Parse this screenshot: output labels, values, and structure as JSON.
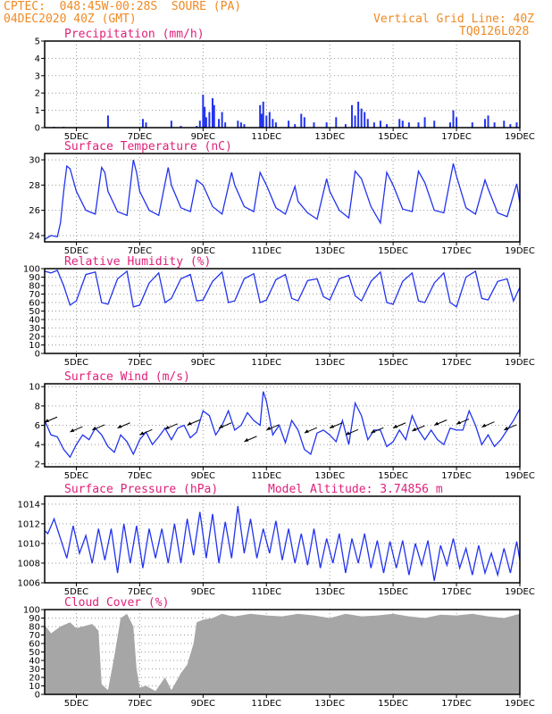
{
  "header": {
    "line1": "CPTEC:  048:45W-00:28S  SOURE (PA)",
    "line2": "04DEC2020 40Z (GMT)",
    "right1": "Vertical Grid Line: 40Z",
    "right2": "TQ0126L028"
  },
  "colors": {
    "line": "#2233ee",
    "bar": "#2233ee",
    "cloud": "#a6a6a6",
    "title": "#e0207a",
    "header": "#f08a24",
    "grid": "#999999"
  },
  "chart_data": [
    {
      "type": "bar",
      "title": "Precipitation (mm/h)",
      "ylim": [
        0,
        5
      ],
      "yticks": [
        0,
        1,
        2,
        3,
        4,
        5
      ],
      "xticks": [
        "5DEC",
        "7DEC",
        "9DEC",
        "11DEC",
        "13DEC",
        "15DEC",
        "17DEC",
        "19DEC"
      ],
      "x_range_days": [
        4.0,
        19.0
      ],
      "bars": [
        [
          4.3,
          0.05
        ],
        [
          4.6,
          0.05
        ],
        [
          6.0,
          0.7
        ],
        [
          7.1,
          0.5
        ],
        [
          7.2,
          0.3
        ],
        [
          8.0,
          0.4
        ],
        [
          8.3,
          0.1
        ],
        [
          8.8,
          0.1
        ],
        [
          8.9,
          0.4
        ],
        [
          9.0,
          1.9
        ],
        [
          9.05,
          1.2
        ],
        [
          9.1,
          0.6
        ],
        [
          9.2,
          0.9
        ],
        [
          9.3,
          1.7
        ],
        [
          9.35,
          1.3
        ],
        [
          9.5,
          0.5
        ],
        [
          9.6,
          0.9
        ],
        [
          9.7,
          0.3
        ],
        [
          10.1,
          0.4
        ],
        [
          10.2,
          0.3
        ],
        [
          10.3,
          0.2
        ],
        [
          10.8,
          1.3
        ],
        [
          10.85,
          0.8
        ],
        [
          10.9,
          1.5
        ],
        [
          11.0,
          0.7
        ],
        [
          11.1,
          0.9
        ],
        [
          11.2,
          0.5
        ],
        [
          11.3,
          0.3
        ],
        [
          11.7,
          0.4
        ],
        [
          11.9,
          0.2
        ],
        [
          12.1,
          0.8
        ],
        [
          12.2,
          0.6
        ],
        [
          12.5,
          0.3
        ],
        [
          12.9,
          0.3
        ],
        [
          13.2,
          0.6
        ],
        [
          13.5,
          0.2
        ],
        [
          13.7,
          1.3
        ],
        [
          13.8,
          0.7
        ],
        [
          13.9,
          1.5
        ],
        [
          14.0,
          1.1
        ],
        [
          14.1,
          0.9
        ],
        [
          14.2,
          0.5
        ],
        [
          14.4,
          0.3
        ],
        [
          14.6,
          0.4
        ],
        [
          14.8,
          0.2
        ],
        [
          15.2,
          0.5
        ],
        [
          15.3,
          0.4
        ],
        [
          15.5,
          0.3
        ],
        [
          15.8,
          0.3
        ],
        [
          16.0,
          0.6
        ],
        [
          16.3,
          0.4
        ],
        [
          16.8,
          0.3
        ],
        [
          16.9,
          1.0
        ],
        [
          17.0,
          0.6
        ],
        [
          17.5,
          0.3
        ],
        [
          17.9,
          0.5
        ],
        [
          18.0,
          0.7
        ],
        [
          18.2,
          0.3
        ],
        [
          18.5,
          0.4
        ],
        [
          18.7,
          0.2
        ],
        [
          18.9,
          0.3
        ]
      ]
    },
    {
      "type": "line",
      "title": "Surface Temperature (nC)",
      "ylim": [
        23.5,
        30.5
      ],
      "yticks": [
        24,
        26,
        28,
        30
      ],
      "xticks": [
        "5DEC",
        "7DEC",
        "9DEC",
        "11DEC",
        "13DEC",
        "15DEC",
        "17DEC",
        "19DEC"
      ],
      "x": [
        4.0,
        4.2,
        4.4,
        4.5,
        4.6,
        4.7,
        4.8,
        5.0,
        5.3,
        5.6,
        5.8,
        5.9,
        6.0,
        6.3,
        6.6,
        6.8,
        6.9,
        7.0,
        7.3,
        7.6,
        7.9,
        8.0,
        8.3,
        8.6,
        8.8,
        9.0,
        9.3,
        9.6,
        9.9,
        10.0,
        10.3,
        10.6,
        10.8,
        11.0,
        11.3,
        11.6,
        11.9,
        12.0,
        12.3,
        12.6,
        12.9,
        13.0,
        13.3,
        13.6,
        13.8,
        14.0,
        14.3,
        14.6,
        14.8,
        15.0,
        15.3,
        15.6,
        15.8,
        16.0,
        16.3,
        16.6,
        16.9,
        17.0,
        17.3,
        17.6,
        17.9,
        18.0,
        18.3,
        18.6,
        18.9,
        19.0
      ],
      "values": [
        23.7,
        24.0,
        23.9,
        25.0,
        27.5,
        29.5,
        29.3,
        27.5,
        26.0,
        25.7,
        29.4,
        29.0,
        27.5,
        25.9,
        25.6,
        30.0,
        29.0,
        27.5,
        26.0,
        25.6,
        29.4,
        28.0,
        26.2,
        25.9,
        28.4,
        28.0,
        26.3,
        25.7,
        29.0,
        28.0,
        26.3,
        25.9,
        29.0,
        28.0,
        26.2,
        25.7,
        27.9,
        26.7,
        25.8,
        25.3,
        28.5,
        27.5,
        26.0,
        25.4,
        29.1,
        28.5,
        26.3,
        25.0,
        29.0,
        28.0,
        26.1,
        25.9,
        29.1,
        28.2,
        26.0,
        25.8,
        29.7,
        28.7,
        26.2,
        25.7,
        28.4,
        27.7,
        25.8,
        25.5,
        28.1,
        26.6
      ]
    },
    {
      "type": "line",
      "title": "Relative Humidity (%)",
      "ylim": [
        0,
        100
      ],
      "yticks": [
        0,
        10,
        20,
        30,
        40,
        50,
        60,
        70,
        80,
        90,
        100
      ],
      "xticks": [
        "5DEC",
        "7DEC",
        "9DEC",
        "11DEC",
        "13DEC",
        "15DEC",
        "17DEC",
        "19DEC"
      ],
      "x": [
        4.0,
        4.2,
        4.4,
        4.6,
        4.8,
        5.0,
        5.3,
        5.6,
        5.8,
        6.0,
        6.3,
        6.6,
        6.8,
        7.0,
        7.3,
        7.6,
        7.8,
        8.0,
        8.3,
        8.6,
        8.8,
        9.0,
        9.3,
        9.6,
        9.8,
        10.0,
        10.3,
        10.6,
        10.8,
        11.0,
        11.3,
        11.6,
        11.8,
        12.0,
        12.3,
        12.6,
        12.8,
        13.0,
        13.3,
        13.6,
        13.8,
        14.0,
        14.3,
        14.6,
        14.8,
        15.0,
        15.3,
        15.6,
        15.8,
        16.0,
        16.3,
        16.6,
        16.8,
        17.0,
        17.3,
        17.6,
        17.8,
        18.0,
        18.3,
        18.6,
        18.8,
        19.0
      ],
      "values": [
        97,
        95,
        98,
        80,
        57,
        62,
        93,
        96,
        60,
        58,
        88,
        97,
        55,
        57,
        83,
        95,
        60,
        65,
        88,
        93,
        62,
        63,
        85,
        96,
        60,
        62,
        88,
        94,
        60,
        63,
        87,
        93,
        65,
        62,
        86,
        88,
        67,
        63,
        88,
        92,
        68,
        62,
        85,
        96,
        60,
        58,
        85,
        95,
        62,
        60,
        83,
        95,
        60,
        55,
        90,
        97,
        65,
        63,
        85,
        88,
        62,
        78
      ]
    },
    {
      "type": "line",
      "title": "Surface Wind (m/s)",
      "ylim": [
        1.7,
        10.3
      ],
      "yticks": [
        2,
        4,
        6,
        8,
        10
      ],
      "xticks": [
        "5DEC",
        "7DEC",
        "9DEC",
        "11DEC",
        "13DEC",
        "15DEC",
        "17DEC",
        "19DEC"
      ],
      "x": [
        4.0,
        4.2,
        4.4,
        4.6,
        4.8,
        5.0,
        5.2,
        5.4,
        5.6,
        5.8,
        6.0,
        6.2,
        6.4,
        6.6,
        6.8,
        7.0,
        7.2,
        7.4,
        7.6,
        7.8,
        8.0,
        8.2,
        8.4,
        8.6,
        8.8,
        9.0,
        9.2,
        9.4,
        9.6,
        9.8,
        10.0,
        10.2,
        10.4,
        10.6,
        10.8,
        10.9,
        11.0,
        11.2,
        11.4,
        11.6,
        11.8,
        12.0,
        12.2,
        12.4,
        12.6,
        12.8,
        13.0,
        13.2,
        13.4,
        13.6,
        13.8,
        14.0,
        14.2,
        14.4,
        14.6,
        14.8,
        15.0,
        15.2,
        15.4,
        15.6,
        15.8,
        16.0,
        16.2,
        16.4,
        16.6,
        16.8,
        17.0,
        17.2,
        17.4,
        17.6,
        17.8,
        18.0,
        18.2,
        18.4,
        18.6,
        18.8,
        19.0
      ],
      "values": [
        6.5,
        5.0,
        4.8,
        3.5,
        2.7,
        4.0,
        5.0,
        4.5,
        5.7,
        5.0,
        3.8,
        3.2,
        5.0,
        4.3,
        3.0,
        4.5,
        5.3,
        4.0,
        4.8,
        5.7,
        4.5,
        5.7,
        6.0,
        4.7,
        5.3,
        7.5,
        7.0,
        5.0,
        6.0,
        7.5,
        5.5,
        6.0,
        7.3,
        6.5,
        6.0,
        9.5,
        8.5,
        5.0,
        6.0,
        4.2,
        6.5,
        5.5,
        3.5,
        3.0,
        5.2,
        5.5,
        5.0,
        4.3,
        6.5,
        4.0,
        8.3,
        7.0,
        4.5,
        5.5,
        5.5,
        3.8,
        4.3,
        5.5,
        4.5,
        7.0,
        5.5,
        4.5,
        5.5,
        4.5,
        4.0,
        5.7,
        5.5,
        5.5,
        7.5,
        6.0,
        4.0,
        5.0,
        3.8,
        4.5,
        5.5,
        6.5,
        7.7
      ]
    },
    {
      "type": "line",
      "title": "Surface Pressure (hPa)",
      "annotation": "Model Altitude: 3.74856 m",
      "ylim": [
        1006,
        1014.8
      ],
      "yticks": [
        1006,
        1008,
        1010,
        1012,
        1014
      ],
      "xticks": [
        "5DEC",
        "7DEC",
        "9DEC",
        "11DEC",
        "13DEC",
        "15DEC",
        "17DEC",
        "19DEC"
      ],
      "x": [
        4.0,
        4.1,
        4.3,
        4.5,
        4.7,
        4.9,
        5.1,
        5.3,
        5.5,
        5.7,
        5.9,
        6.1,
        6.3,
        6.5,
        6.7,
        6.9,
        7.1,
        7.3,
        7.5,
        7.7,
        7.9,
        8.1,
        8.3,
        8.5,
        8.7,
        8.9,
        9.1,
        9.3,
        9.5,
        9.7,
        9.9,
        10.1,
        10.3,
        10.5,
        10.7,
        10.9,
        11.1,
        11.3,
        11.5,
        11.7,
        11.9,
        12.1,
        12.3,
        12.5,
        12.7,
        12.9,
        13.1,
        13.3,
        13.5,
        13.7,
        13.9,
        14.1,
        14.3,
        14.5,
        14.7,
        14.9,
        15.1,
        15.3,
        15.5,
        15.7,
        15.9,
        16.1,
        16.3,
        16.5,
        16.7,
        16.9,
        17.1,
        17.3,
        17.5,
        17.7,
        17.9,
        18.1,
        18.3,
        18.5,
        18.7,
        18.9,
        19.0
      ],
      "values": [
        1011.3,
        1011.0,
        1012.5,
        1010.5,
        1008.5,
        1011.8,
        1009.0,
        1010.8,
        1008.0,
        1011.5,
        1008.3,
        1011.5,
        1007.0,
        1012.0,
        1008.0,
        1011.8,
        1007.5,
        1011.5,
        1008.5,
        1011.5,
        1008.0,
        1012.0,
        1008.0,
        1012.5,
        1008.8,
        1013.2,
        1008.5,
        1013.0,
        1008.0,
        1012.2,
        1008.5,
        1013.8,
        1009.0,
        1012.5,
        1008.5,
        1011.5,
        1009.0,
        1012.3,
        1008.3,
        1011.5,
        1008.0,
        1011.0,
        1007.8,
        1011.5,
        1007.5,
        1010.5,
        1008.0,
        1011.0,
        1007.0,
        1010.5,
        1008.0,
        1011.0,
        1007.5,
        1010.3,
        1007.0,
        1010.2,
        1007.5,
        1010.3,
        1006.8,
        1010.0,
        1007.8,
        1010.3,
        1006.2,
        1009.8,
        1007.8,
        1010.5,
        1007.5,
        1009.5,
        1006.8,
        1009.8,
        1007.0,
        1009.0,
        1006.8,
        1009.5,
        1007.0,
        1010.2,
        1008.3
      ]
    },
    {
      "type": "area",
      "title": "Cloud Cover (%)",
      "ylim": [
        0,
        100
      ],
      "yticks": [
        0,
        10,
        20,
        30,
        40,
        50,
        60,
        70,
        80,
        90,
        100
      ],
      "xticks": [
        "5DEC",
        "7DEC",
        "9DEC",
        "11DEC",
        "13DEC",
        "15DEC",
        "17DEC",
        "19DEC"
      ],
      "x": [
        4.0,
        4.2,
        4.5,
        4.8,
        5.0,
        5.2,
        5.5,
        5.7,
        5.8,
        6.0,
        6.2,
        6.4,
        6.6,
        6.8,
        6.9,
        7.0,
        7.2,
        7.5,
        7.8,
        8.0,
        8.3,
        8.5,
        8.7,
        8.8,
        9.0,
        9.3,
        9.6,
        9.8,
        10.0,
        10.5,
        11.0,
        11.5,
        12.0,
        12.5,
        13.0,
        13.5,
        14.0,
        14.5,
        15.0,
        15.5,
        16.0,
        16.5,
        17.0,
        17.5,
        18.0,
        18.5,
        19.0
      ],
      "values": [
        82,
        72,
        80,
        85,
        78,
        80,
        83,
        75,
        12,
        5,
        45,
        90,
        95,
        80,
        30,
        8,
        10,
        4,
        20,
        5,
        25,
        35,
        60,
        85,
        88,
        90,
        95,
        93,
        92,
        95,
        93,
        92,
        95,
        93,
        90,
        95,
        92,
        93,
        95,
        92,
        90,
        94,
        93,
        95,
        92,
        90,
        95
      ]
    }
  ]
}
